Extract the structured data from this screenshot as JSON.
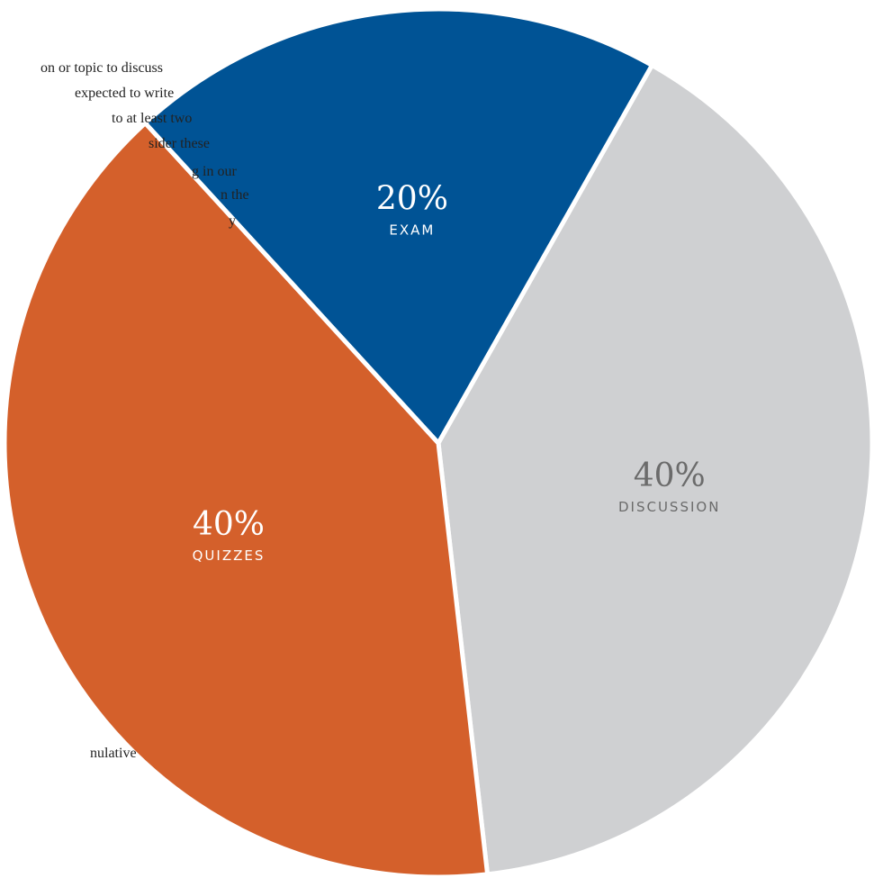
{
  "chart_data": {
    "type": "pie",
    "slices": [
      {
        "label": "DISCUSSION",
        "percent_label": "40%",
        "value": 40,
        "color": "#cfd0d2",
        "text_color": "#6b6b6b"
      },
      {
        "label": "QUIZZES",
        "percent_label": "40%",
        "value": 40,
        "color": "#d4602b",
        "text_color": "#ffffff"
      },
      {
        "label": "EXAM",
        "percent_label": "20%",
        "value": 20,
        "color": "#005395",
        "text_color": "#ffffff"
      }
    ],
    "notes": {
      "discussion": [
        "on or topic to discuss",
        "expected to write",
        "to at least two",
        "sider these",
        "g in our",
        "n the",
        "y"
      ],
      "exam": [
        "nulative"
      ]
    }
  }
}
